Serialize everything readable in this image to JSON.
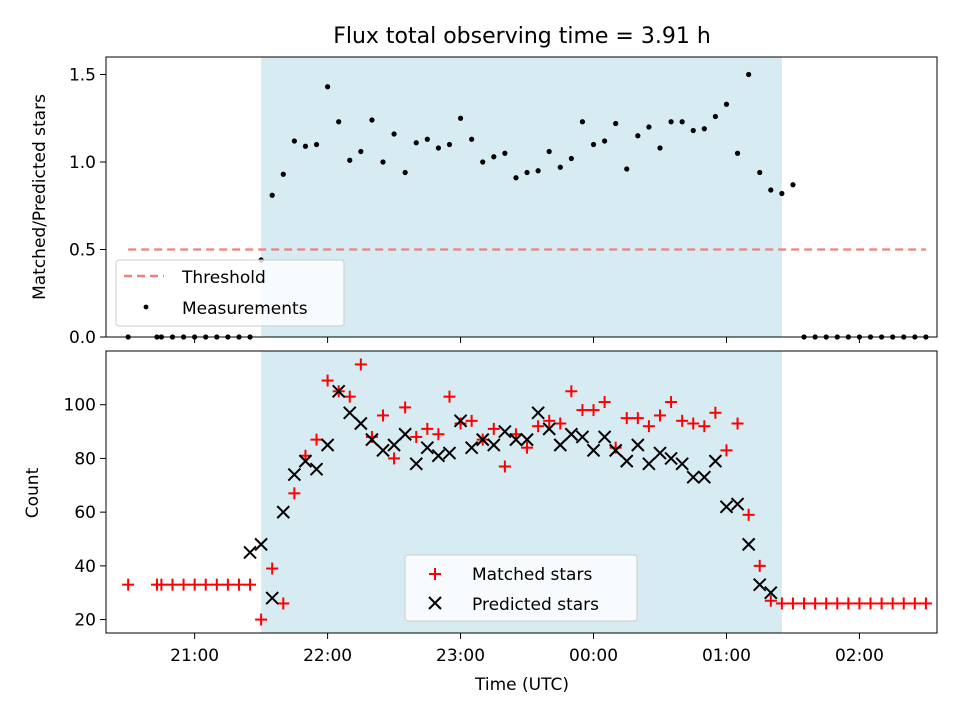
{
  "chart_data": [
    {
      "type": "scatter",
      "title": "Flux total observing time = 3.91 h",
      "xlabel": "",
      "ylabel": "Matched/Predicted stars",
      "xlim": [
        "20:20",
        "02:35"
      ],
      "ylim": [
        0,
        1.6
      ],
      "yticks": [
        0.0,
        0.5,
        1.0,
        1.5
      ],
      "ytick_labels": [
        "0.0",
        "0.5",
        "1.0",
        "1.5"
      ],
      "grid": false,
      "legend_position": "lower-left",
      "shaded_interval": {
        "start": "21:30",
        "end": "01:25",
        "color": "#add8e6"
      },
      "threshold": {
        "name": "Threshold",
        "value": 0.5,
        "x_start": "20:30",
        "x_end": "02:30",
        "color": "#f08080"
      },
      "series": [
        {
          "name": "Measurements",
          "marker": "dot",
          "color": "#000000",
          "x": [
            "20:30",
            "20:43",
            "20:45",
            "20:50",
            "20:55",
            "21:00",
            "21:05",
            "21:10",
            "21:15",
            "21:20",
            "21:25",
            "21:30",
            "21:35",
            "21:40",
            "21:45",
            "21:50",
            "21:55",
            "22:00",
            "22:05",
            "22:10",
            "22:15",
            "22:20",
            "22:25",
            "22:30",
            "22:35",
            "22:40",
            "22:45",
            "22:50",
            "22:55",
            "23:00",
            "23:05",
            "23:10",
            "23:15",
            "23:20",
            "23:25",
            "23:30",
            "23:35",
            "23:40",
            "23:45",
            "23:50",
            "23:55",
            "00:00",
            "00:05",
            "00:10",
            "00:15",
            "00:20",
            "00:25",
            "00:30",
            "00:35",
            "00:40",
            "00:45",
            "00:50",
            "00:55",
            "01:00",
            "01:05",
            "01:10",
            "01:15",
            "01:20",
            "01:25",
            "01:30",
            "01:35",
            "01:40",
            "01:45",
            "01:50",
            "01:55",
            "02:00",
            "02:05",
            "02:10",
            "02:15",
            "02:20",
            "02:25",
            "02:30"
          ],
          "y": [
            0,
            0,
            0,
            0,
            0,
            0,
            0,
            0,
            0,
            0,
            0,
            0.44,
            0.81,
            0.93,
            1.12,
            1.09,
            1.1,
            1.43,
            1.23,
            1.01,
            1.06,
            1.24,
            1.0,
            1.16,
            0.94,
            1.11,
            1.13,
            1.08,
            1.1,
            1.25,
            1.13,
            1.0,
            1.03,
            1.05,
            0.91,
            0.94,
            0.95,
            1.06,
            0.97,
            1.02,
            1.23,
            1.1,
            1.12,
            1.22,
            0.96,
            1.15,
            1.2,
            1.08,
            1.23,
            1.23,
            1.18,
            1.19,
            1.26,
            1.33,
            1.05,
            1.5,
            0.94,
            0.84,
            0.82,
            0.87,
            0,
            0,
            0,
            0,
            0,
            0,
            0,
            0,
            0,
            0,
            0,
            0
          ]
        }
      ]
    },
    {
      "type": "scatter",
      "title": "",
      "xlabel": "Time (UTC)",
      "ylabel": "Count",
      "xlim": [
        "20:20",
        "02:35"
      ],
      "ylim": [
        15,
        120
      ],
      "xticks": [
        "21:00",
        "22:00",
        "23:00",
        "00:00",
        "01:00",
        "02:00"
      ],
      "yticks": [
        20,
        40,
        60,
        80,
        100
      ],
      "ytick_labels": [
        "20",
        "40",
        "60",
        "80",
        "100"
      ],
      "grid": false,
      "legend_position": "lower-center",
      "shaded_interval": {
        "start": "21:30",
        "end": "01:25",
        "color": "#add8e6"
      },
      "series": [
        {
          "name": "Matched stars",
          "marker": "plus",
          "color": "#ff0000",
          "x": [
            "20:30",
            "20:43",
            "20:45",
            "20:50",
            "20:55",
            "21:00",
            "21:05",
            "21:10",
            "21:15",
            "21:20",
            "21:25",
            "21:30",
            "21:35",
            "21:40",
            "21:45",
            "21:50",
            "21:55",
            "22:00",
            "22:05",
            "22:10",
            "22:15",
            "22:20",
            "22:25",
            "22:30",
            "22:35",
            "22:40",
            "22:45",
            "22:50",
            "22:55",
            "23:00",
            "23:05",
            "23:10",
            "23:15",
            "23:20",
            "23:25",
            "23:30",
            "23:35",
            "23:40",
            "23:45",
            "23:50",
            "23:55",
            "00:00",
            "00:05",
            "00:10",
            "00:15",
            "00:20",
            "00:25",
            "00:30",
            "00:35",
            "00:40",
            "00:45",
            "00:50",
            "00:55",
            "01:00",
            "01:05",
            "01:10",
            "01:15",
            "01:20",
            "01:25",
            "01:30",
            "01:35",
            "01:40",
            "01:45",
            "01:50",
            "01:55",
            "02:00",
            "02:05",
            "02:10",
            "02:15",
            "02:20",
            "02:25",
            "02:30"
          ],
          "y": [
            33,
            33,
            33,
            33,
            33,
            33,
            33,
            33,
            33,
            33,
            33,
            20,
            39,
            26,
            67,
            81,
            87,
            109,
            105,
            103,
            115,
            88,
            96,
            80,
            99,
            88,
            91,
            89,
            103,
            93,
            94,
            87,
            91,
            77,
            89,
            84,
            92,
            94,
            93,
            105,
            98,
            98,
            101,
            84,
            95,
            95,
            92,
            96,
            101,
            94,
            93,
            92,
            97,
            83,
            93,
            59,
            40,
            27,
            26,
            26,
            26,
            26,
            26,
            26,
            26,
            26,
            26,
            26,
            26,
            26,
            26,
            26
          ]
        },
        {
          "name": "Predicted stars",
          "marker": "x",
          "color": "#000000",
          "x": [
            "21:25",
            "21:30",
            "21:35",
            "21:40",
            "21:45",
            "21:50",
            "21:55",
            "22:00",
            "22:05",
            "22:10",
            "22:15",
            "22:20",
            "22:25",
            "22:30",
            "22:35",
            "22:40",
            "22:45",
            "22:50",
            "22:55",
            "23:00",
            "23:05",
            "23:10",
            "23:15",
            "23:20",
            "23:25",
            "23:30",
            "23:35",
            "23:40",
            "23:45",
            "23:50",
            "23:55",
            "00:00",
            "00:05",
            "00:10",
            "00:15",
            "00:20",
            "00:25",
            "00:30",
            "00:35",
            "00:40",
            "00:45",
            "00:50",
            "00:55",
            "01:00",
            "01:05",
            "01:10",
            "01:15",
            "01:20"
          ],
          "y": [
            45,
            48,
            28,
            60,
            74,
            79,
            76,
            85,
            105,
            97,
            93,
            87,
            83,
            85,
            89,
            78,
            84,
            81,
            82,
            94,
            84,
            87,
            85,
            90,
            87,
            87,
            97,
            91,
            85,
            89,
            88,
            83,
            88,
            83,
            79,
            85,
            78,
            82,
            80,
            78,
            73,
            73,
            79,
            62,
            63,
            48,
            33,
            30
          ]
        }
      ]
    }
  ]
}
